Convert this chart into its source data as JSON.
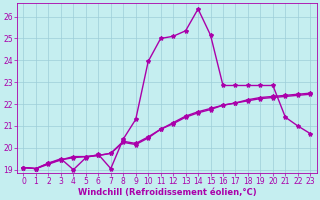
{
  "xlabel": "Windchill (Refroidissement éolien,°C)",
  "background_color": "#c5eef0",
  "grid_color": "#9dcdd8",
  "line_color": "#aa00aa",
  "spine_color": "#aa00aa",
  "xlim": [
    -0.5,
    23.5
  ],
  "ylim": [
    18.85,
    26.6
  ],
  "xticks": [
    0,
    1,
    2,
    3,
    4,
    5,
    6,
    7,
    8,
    9,
    10,
    11,
    12,
    13,
    14,
    15,
    16,
    17,
    18,
    19,
    20,
    21,
    22,
    23
  ],
  "yticks": [
    19,
    20,
    21,
    22,
    23,
    24,
    25,
    26
  ],
  "line1_x": [
    0,
    1,
    2,
    3,
    4,
    5,
    6,
    7,
    8,
    9,
    10,
    11,
    12,
    13,
    14,
    15,
    16,
    17,
    18,
    19,
    20,
    21,
    22,
    23
  ],
  "line1_y": [
    19.1,
    19.05,
    19.3,
    19.5,
    19.0,
    19.55,
    19.7,
    19.05,
    20.4,
    21.3,
    23.95,
    25.0,
    25.1,
    25.35,
    26.35,
    25.15,
    22.85,
    22.85,
    22.85,
    22.85,
    22.85,
    21.4,
    21.0,
    20.65
  ],
  "line2_x": [
    0,
    1,
    2,
    3,
    4,
    5,
    6,
    7,
    8,
    9,
    10,
    11,
    12,
    13,
    14,
    15,
    16,
    17,
    18,
    19,
    20,
    21,
    22,
    23
  ],
  "line2_y": [
    19.1,
    19.05,
    19.25,
    19.45,
    19.55,
    19.6,
    19.65,
    19.75,
    20.25,
    20.15,
    20.45,
    20.85,
    21.15,
    21.45,
    21.65,
    21.8,
    21.95,
    22.05,
    22.15,
    22.25,
    22.3,
    22.35,
    22.4,
    22.45
  ],
  "line3_x": [
    0,
    1,
    2,
    3,
    4,
    5,
    6,
    7,
    8,
    9,
    10,
    11,
    12,
    13,
    14,
    15,
    16,
    17,
    18,
    19,
    20,
    21,
    22,
    23
  ],
  "line3_y": [
    19.1,
    19.05,
    19.3,
    19.45,
    19.6,
    19.6,
    19.65,
    19.75,
    20.3,
    20.2,
    20.5,
    20.85,
    21.1,
    21.4,
    21.6,
    21.75,
    21.95,
    22.05,
    22.2,
    22.3,
    22.35,
    22.4,
    22.45,
    22.5
  ],
  "marker": "*",
  "marker_size": 3,
  "linewidth": 1.0,
  "tick_fontsize": 5.5,
  "xlabel_fontsize": 6,
  "tick_color": "#aa00aa"
}
